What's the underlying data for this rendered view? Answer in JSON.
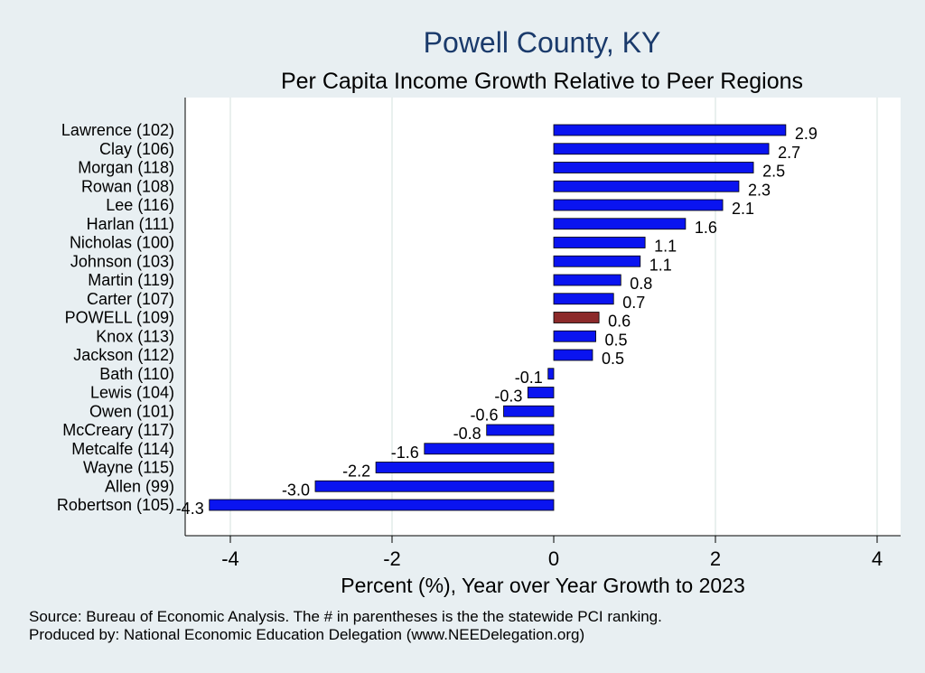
{
  "chart_data": {
    "type": "bar",
    "orientation": "horizontal",
    "title": "Powell County, KY",
    "subtitle": "Per Capita Income Growth Relative to Peer Regions",
    "xlabel": "Percent (%), Year over Year Growth to 2023",
    "ylabel": "",
    "xlim": [
      -4.5,
      4.3
    ],
    "xticks": [
      -4,
      -2,
      0,
      2,
      4
    ],
    "xtick_labels": [
      "-4",
      "-2",
      "0",
      "2",
      "4"
    ],
    "grid": true,
    "categories": [
      "Lawrence (102)",
      "Clay (106)",
      "Morgan (118)",
      "Rowan (108)",
      "Lee (116)",
      "Harlan (111)",
      "Nicholas (100)",
      "Johnson (103)",
      "Martin (119)",
      "Carter (107)",
      "POWELL (109)",
      "Knox (113)",
      "Jackson (112)",
      "Bath (110)",
      "Lewis (104)",
      "Owen (101)",
      "McCreary (117)",
      "Metcalfe (114)",
      "Wayne (115)",
      "Allen (99)",
      "Robertson (105)"
    ],
    "values": [
      2.87,
      2.66,
      2.47,
      2.29,
      2.09,
      1.63,
      1.13,
      1.07,
      0.83,
      0.74,
      0.56,
      0.52,
      0.48,
      -0.07,
      -0.32,
      -0.62,
      -0.83,
      -1.6,
      -2.2,
      -2.95,
      -4.26
    ],
    "value_labels": [
      "2.9",
      "2.7",
      "2.5",
      "2.3",
      "2.1",
      "1.6",
      "1.1",
      "1.1",
      "0.8",
      "0.7",
      "0.6",
      "0.5",
      "0.5",
      "-0.1",
      "-0.3",
      "-0.6",
      "-0.8",
      "-1.6",
      "-2.2",
      "-3.0",
      "-4.3"
    ],
    "highlight": "POWELL (109)",
    "colors": {
      "bar": "#0a14f0",
      "bar_edge": "#000000",
      "highlight": "#8c2a2a",
      "title": "#1a3a6b",
      "plot_bg": "#ffffff",
      "page_bg": "#e8eff2",
      "grid": "#e2ece9"
    }
  },
  "notes": {
    "source": "Source: Bureau of Economic Analysis. The # in parentheses is the the statewide PCI ranking.",
    "produced": "Produced by: National Economic Education Delegation (www.NEEDelegation.org)"
  }
}
